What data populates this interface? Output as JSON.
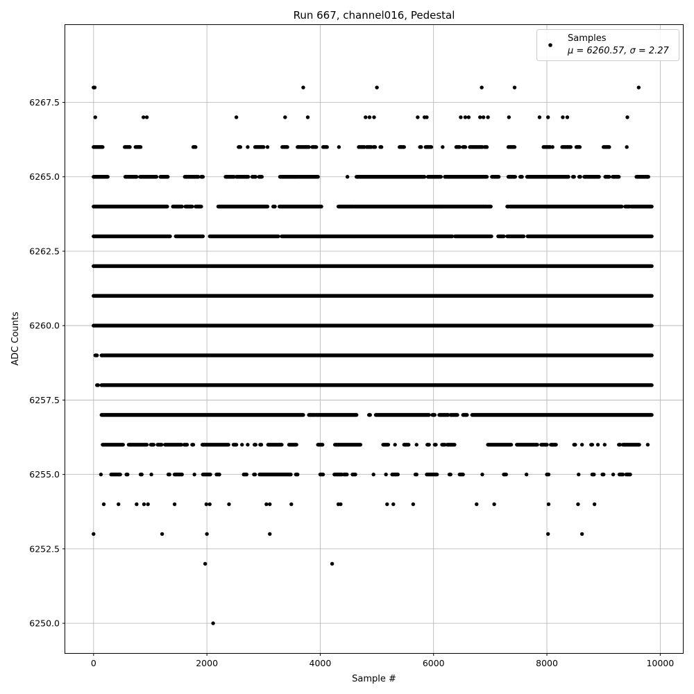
{
  "chart_data": {
    "type": "scatter",
    "title": "Run 667, channel016, Pedestal",
    "xlabel": "Sample #",
    "ylabel": "ADC Counts",
    "xlim": [
      -500,
      10400
    ],
    "ylim": [
      6249.0,
      6270.1
    ],
    "xticks": [
      0,
      2000,
      4000,
      6000,
      8000,
      10000
    ],
    "xtick_labels": [
      "0",
      "2000",
      "4000",
      "6000",
      "8000",
      "10000"
    ],
    "yticks": [
      6250.0,
      6252.5,
      6255.0,
      6257.5,
      6260.0,
      6262.5,
      6265.0,
      6267.5
    ],
    "ytick_labels": [
      "6250.0",
      "6252.5",
      "6255.0",
      "6257.5",
      "6260.0",
      "6262.5",
      "6265.0",
      "6267.5"
    ],
    "grid": true,
    "legend_position": "top-right",
    "marker_color": "#000000",
    "series": [
      {
        "name": "Samples",
        "stats_line": "μ = 6260.57, σ = 2.27",
        "points": [
          [
            0,
            6268
          ],
          [
            20,
            6268
          ],
          [
            3700,
            6268
          ],
          [
            5000,
            6268
          ],
          [
            6850,
            6268
          ],
          [
            7430,
            6268
          ],
          [
            9620,
            6268
          ],
          [
            30,
            6267
          ],
          [
            880,
            6267
          ],
          [
            940,
            6267
          ],
          [
            2520,
            6267
          ],
          [
            3380,
            6267
          ],
          [
            3780,
            6267
          ],
          [
            4800,
            6267
          ],
          [
            4870,
            6267
          ],
          [
            4950,
            6267
          ],
          [
            5720,
            6267
          ],
          [
            5840,
            6267
          ],
          [
            5880,
            6267
          ],
          [
            6480,
            6267
          ],
          [
            6560,
            6267
          ],
          [
            6620,
            6267
          ],
          [
            6820,
            6267
          ],
          [
            6880,
            6267
          ],
          [
            6960,
            6267
          ],
          [
            7330,
            6267
          ],
          [
            7870,
            6267
          ],
          [
            8020,
            6267
          ],
          [
            8280,
            6267
          ],
          [
            8360,
            6267
          ],
          [
            9420,
            6267
          ],
          [
            0,
            6253
          ],
          [
            1210,
            6253
          ],
          [
            2000,
            6253
          ],
          [
            3110,
            6253
          ],
          [
            8020,
            6253
          ],
          [
            8620,
            6253
          ],
          [
            1970,
            6252
          ],
          [
            4210,
            6252
          ],
          [
            2110,
            6250
          ],
          [
            180,
            6254
          ],
          [
            440,
            6254
          ],
          [
            760,
            6254
          ],
          [
            890,
            6254
          ],
          [
            960,
            6254
          ],
          [
            1430,
            6254
          ],
          [
            1990,
            6254
          ],
          [
            2050,
            6254
          ],
          [
            2390,
            6254
          ],
          [
            3050,
            6254
          ],
          [
            3110,
            6254
          ],
          [
            3490,
            6254
          ],
          [
            4320,
            6254
          ],
          [
            4360,
            6254
          ],
          [
            5180,
            6254
          ],
          [
            5290,
            6254
          ],
          [
            5640,
            6254
          ],
          [
            6760,
            6254
          ],
          [
            7070,
            6254
          ],
          [
            8030,
            6254
          ],
          [
            8550,
            6254
          ],
          [
            8840,
            6254
          ]
        ],
        "bands": [
          {
            "y": 6266,
            "x_ranges": [
              [
                0,
                160
              ],
              [
                550,
                640
              ],
              [
                740,
                830
              ],
              [
                1760,
                1800
              ],
              [
                2560,
                2590
              ],
              [
                2720,
                2730
              ],
              [
                2850,
                3000
              ],
              [
                3070,
                3080
              ],
              [
                3330,
                3420
              ],
              [
                3600,
                3800
              ],
              [
                3860,
                3930
              ],
              [
                4050,
                4120
              ],
              [
                4330,
                4340
              ],
              [
                4680,
                4780
              ],
              [
                4820,
                4900
              ],
              [
                4940,
                4970
              ],
              [
                5060,
                5080
              ],
              [
                5400,
                5480
              ],
              [
                5760,
                5780
              ],
              [
                5860,
                5960
              ],
              [
                6160,
                6170
              ],
              [
                6400,
                6460
              ],
              [
                6520,
                6560
              ],
              [
                6640,
                6860
              ],
              [
                6900,
                6940
              ],
              [
                7320,
                7430
              ],
              [
                7940,
                8060
              ],
              [
                8100,
                8110
              ],
              [
                8270,
                8420
              ],
              [
                8520,
                8580
              ],
              [
                9000,
                9100
              ],
              [
                9410,
                9420
              ]
            ]
          },
          {
            "y": 6265,
            "x_ranges": [
              [
                0,
                250
              ],
              [
                560,
                760
              ],
              [
                820,
                1110
              ],
              [
                1180,
                1310
              ],
              [
                1610,
                1850
              ],
              [
                1900,
                1930
              ],
              [
                2330,
                2480
              ],
              [
                2520,
                2730
              ],
              [
                2800,
                2860
              ],
              [
                2920,
                2970
              ],
              [
                3290,
                3620
              ],
              [
                3640,
                3960
              ],
              [
                4480,
                4490
              ],
              [
                4640,
                5840
              ],
              [
                5900,
                6130
              ],
              [
                6200,
                6940
              ],
              [
                7030,
                7150
              ],
              [
                7320,
                7440
              ],
              [
                7530,
                7560
              ],
              [
                7650,
                8380
              ],
              [
                8460,
                8480
              ],
              [
                8570,
                8590
              ],
              [
                8660,
                8920
              ],
              [
                9030,
                9100
              ],
              [
                9160,
                9270
              ],
              [
                9580,
                9790
              ]
            ]
          },
          {
            "y": 6264,
            "x_ranges": [
              [
                0,
                1300
              ],
              [
                1400,
                1560
              ],
              [
                1620,
                1740
              ],
              [
                1800,
                1900
              ],
              [
                2200,
                3070
              ],
              [
                3170,
                3200
              ],
              [
                3280,
                4020
              ],
              [
                4320,
                4580
              ],
              [
                4600,
                6130
              ],
              [
                6140,
                6940
              ],
              [
                6960,
                7010
              ],
              [
                7300,
                7320
              ],
              [
                7350,
                9320
              ],
              [
                9380,
                9460
              ],
              [
                9490,
                9850
              ]
            ]
          },
          {
            "y": 6263,
            "x_ranges": [
              [
                0,
                1350
              ],
              [
                1450,
                1930
              ],
              [
                2050,
                3260
              ],
              [
                3320,
                4600
              ],
              [
                4610,
                6330
              ],
              [
                6380,
                7020
              ],
              [
                7140,
                7240
              ],
              [
                7300,
                7590
              ],
              [
                7660,
                9850
              ]
            ]
          },
          {
            "y": 6262,
            "x_ranges": [
              [
                0,
                9850
              ]
            ]
          },
          {
            "y": 6261,
            "x_ranges": [
              [
                0,
                9850
              ]
            ]
          },
          {
            "y": 6260,
            "x_ranges": [
              [
                0,
                9850
              ]
            ]
          },
          {
            "y": 6259,
            "x_ranges": [
              [
                30,
                60
              ],
              [
                140,
                9850
              ]
            ]
          },
          {
            "y": 6258,
            "x_ranges": [
              [
                60,
                80
              ],
              [
                140,
                9850
              ]
            ]
          },
          {
            "y": 6257,
            "x_ranges": [
              [
                140,
                3700
              ],
              [
                3800,
                3910
              ],
              [
                3930,
                4640
              ],
              [
                4860,
                4880
              ],
              [
                4980,
                5920
              ],
              [
                5980,
                6020
              ],
              [
                6100,
                6260
              ],
              [
                6300,
                6420
              ],
              [
                6520,
                6590
              ],
              [
                6680,
                9850
              ]
            ]
          },
          {
            "y": 6256,
            "x_ranges": [
              [
                160,
                520
              ],
              [
                620,
                940
              ],
              [
                1010,
                1060
              ],
              [
                1130,
                1200
              ],
              [
                1260,
                1550
              ],
              [
                1600,
                1650
              ],
              [
                1740,
                1760
              ],
              [
                1920,
                2380
              ],
              [
                2470,
                2520
              ],
              [
                2620,
                2630
              ],
              [
                2720,
                2730
              ],
              [
                2840,
                2860
              ],
              [
                2940,
                2960
              ],
              [
                3080,
                3320
              ],
              [
                3450,
                3580
              ],
              [
                3960,
                4040
              ],
              [
                4260,
                4710
              ],
              [
                5110,
                5200
              ],
              [
                5320,
                5330
              ],
              [
                5480,
                5560
              ],
              [
                5700,
                5710
              ],
              [
                5890,
                5920
              ],
              [
                6020,
                6040
              ],
              [
                6150,
                6200
              ],
              [
                6240,
                6370
              ],
              [
                6960,
                7370
              ],
              [
                7470,
                7830
              ],
              [
                7900,
                8000
              ],
              [
                8070,
                8160
              ],
              [
                8480,
                8500
              ],
              [
                8620,
                8630
              ],
              [
                8780,
                8800
              ],
              [
                8900,
                8910
              ],
              [
                9020,
                9030
              ],
              [
                9270,
                9290
              ],
              [
                9340,
                9630
              ],
              [
                9780,
                9790
              ]
            ]
          },
          {
            "y": 6255,
            "x_ranges": [
              [
                130,
                140
              ],
              [
                310,
                470
              ],
              [
                580,
                600
              ],
              [
                830,
                850
              ],
              [
                1020,
                1030
              ],
              [
                1320,
                1340
              ],
              [
                1430,
                1560
              ],
              [
                1780,
                1790
              ],
              [
                1930,
                2060
              ],
              [
                2170,
                2220
              ],
              [
                2650,
                2700
              ],
              [
                2830,
                2850
              ],
              [
                2930,
                3480
              ],
              [
                3570,
                3600
              ],
              [
                4000,
                4050
              ],
              [
                4250,
                4380
              ],
              [
                4420,
                4470
              ],
              [
                4570,
                4620
              ],
              [
                4940,
                4950
              ],
              [
                5160,
                5170
              ],
              [
                5270,
                5370
              ],
              [
                5680,
                5700
              ],
              [
                5880,
                6060
              ],
              [
                6280,
                6300
              ],
              [
                6460,
                6520
              ],
              [
                6860,
                6870
              ],
              [
                7240,
                7280
              ],
              [
                7640,
                7650
              ],
              [
                8000,
                8030
              ],
              [
                8560,
                8570
              ],
              [
                8800,
                8830
              ],
              [
                8980,
                9000
              ],
              [
                9170,
                9180
              ],
              [
                9280,
                9340
              ],
              [
                9400,
                9470
              ]
            ]
          }
        ]
      }
    ]
  }
}
